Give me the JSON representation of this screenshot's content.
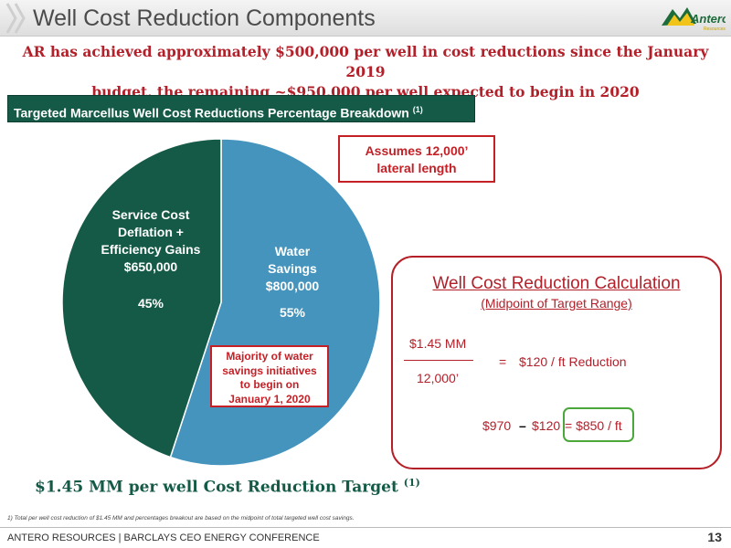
{
  "header": {
    "title": "Well Cost Reduction Components",
    "logo_text": "Antero",
    "logo_subtext": "Resources"
  },
  "headline": {
    "line1": "AR has achieved approximately $500,000 per well in cost reductions since the January 2019",
    "line2": "budget, the remaining ~$950,000 per well expected to begin in 2020"
  },
  "section": {
    "title": "Targeted Marcellus Well Cost Reductions Percentage Breakdown",
    "footnote_mark": "(1)"
  },
  "colors": {
    "accent_red": "#b3202a",
    "dark_green": "#145a46",
    "water_blue": "#4594bd",
    "check_green": "#4aa83a"
  },
  "chart_data": {
    "type": "pie",
    "slices": [
      {
        "label_lines": [
          "Water",
          "Savings",
          "$800,000"
        ],
        "value": 800000,
        "percent_label": "55%"
      },
      {
        "label_lines": [
          "Service Cost",
          "Deflation +",
          "Efficiency Gains",
          "$650,000"
        ],
        "value": 650000,
        "percent_label": "45%"
      }
    ]
  },
  "callouts": {
    "assumption": [
      "Assumes 12,000’",
      "lateral length"
    ],
    "water": [
      "Majority of water",
      "savings initiatives",
      "to begin on",
      "January 1, 2020"
    ]
  },
  "calculation": {
    "title": "Well Cost Reduction Calculation",
    "subtitle": "(Midpoint of Target Range)",
    "numerator": "$1.45 MM",
    "denominator": "12,000’",
    "equals": "=",
    "result": "$120 / ft Reduction",
    "final_left": "$970",
    "final_dash": "–",
    "final_middle": "$120",
    "final_right": "= $850 / ft"
  },
  "target": {
    "text": "$1.45 MM per well Cost Reduction Target",
    "mark": "(1)"
  },
  "footnote": "1)  Total per well cost reduction of $1.45 MM and percentages breakout are based on the midpoint of total targeted well cost savings.",
  "footer": {
    "text": "ANTERO RESOURCES | BARCLAYS CEO ENERGY CONFERENCE",
    "page_number": "13"
  }
}
